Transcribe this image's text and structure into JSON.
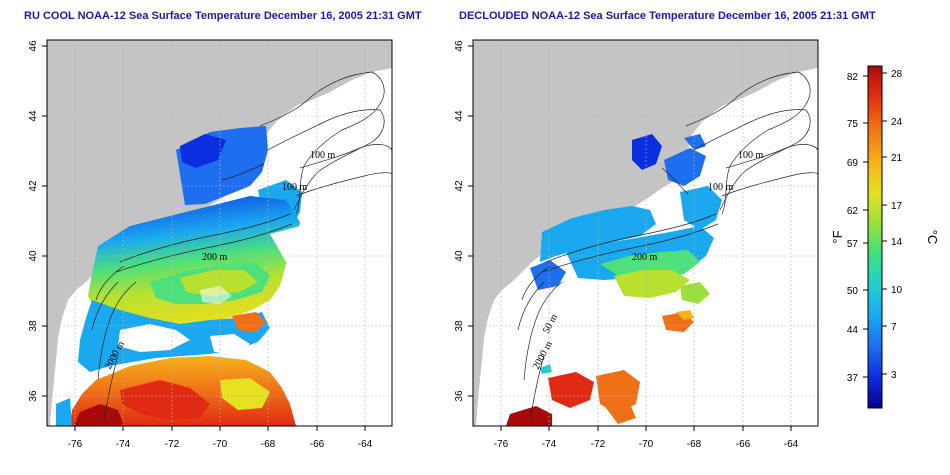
{
  "panels": [
    {
      "title": "RU COOL NOAA-12 Sea Surface Temperature December 16, 2005 21:31 GMT",
      "kind": "cool"
    },
    {
      "title": "DECLOUDED NOAA-12 Sea Surface Temperature December 16, 2005 21:31 GMT",
      "kind": "declouded"
    }
  ],
  "x_ticks": [
    "-76",
    "-74",
    "-72",
    "-70",
    "-68",
    "-66",
    "-64"
  ],
  "y_ticks": [
    "46",
    "44",
    "42",
    "40",
    "38",
    "36"
  ],
  "isobath_labels": {
    "left": [
      "100 m",
      "100 m",
      "200 m",
      "2000 m"
    ],
    "right": [
      "100 m",
      "100 m",
      "200 m",
      "50 m",
      "2000 m"
    ]
  },
  "colorbar": {
    "fahrenheit_ticks": [
      "82",
      "75",
      "69",
      "62",
      "57",
      "50",
      "44",
      "37"
    ],
    "celsius_ticks": [
      "28",
      "24",
      "21",
      "17",
      "14",
      "10",
      "7",
      "3"
    ],
    "fahrenheit_unit": "°F",
    "celsius_unit": "°C",
    "colors": [
      "#08008a",
      "#0a2fe0",
      "#1e6ef0",
      "#1aa8f0",
      "#20d0d0",
      "#3ee07a",
      "#9be03a",
      "#e6e020",
      "#f5b21a",
      "#f07018",
      "#e02a12",
      "#a80a0a"
    ]
  },
  "colors": {
    "land": "#c4c4c4",
    "title": "#1a1aa6",
    "grid": "#b5b5b5"
  }
}
